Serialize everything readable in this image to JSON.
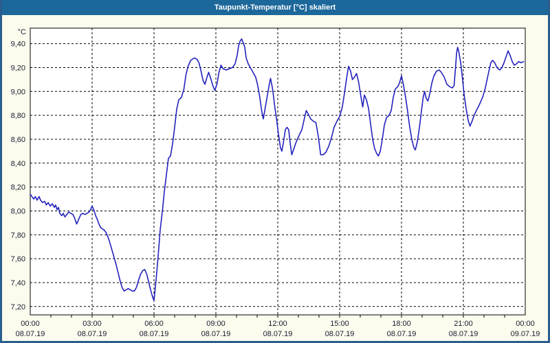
{
  "window": {
    "title": "Taupunkt-Temperatur [°C] skaliert"
  },
  "colors": {
    "titlebar_bg": "#1d689b",
    "titlebar_text": "#ffffff",
    "window_bg": "#fbfbee",
    "window_border": "#2a5d8c",
    "plot_bg": "#ffffff",
    "plot_border": "#000000",
    "grid": "#000000",
    "line": "#2222bd",
    "label_text": "#1b1b2f"
  },
  "chart_data": {
    "type": "line",
    "title": "Taupunkt-Temperatur [°C] skaliert",
    "ylabel": "°C",
    "unit_label": "°C",
    "grid": true,
    "legend": "none",
    "ylim": [
      7.13,
      9.53
    ],
    "xlim_hours": [
      0,
      24
    ],
    "y_ticks": [
      {
        "value": 9.4,
        "label": "9,40"
      },
      {
        "value": 9.2,
        "label": "9,20"
      },
      {
        "value": 9.0,
        "label": "9,00"
      },
      {
        "value": 8.8,
        "label": "8,80"
      },
      {
        "value": 8.6,
        "label": "8,60"
      },
      {
        "value": 8.4,
        "label": "8,40"
      },
      {
        "value": 8.2,
        "label": "8,20"
      },
      {
        "value": 8.0,
        "label": "8,00"
      },
      {
        "value": 7.8,
        "label": "7,80"
      },
      {
        "value": 7.6,
        "label": "7,60"
      },
      {
        "value": 7.4,
        "label": "7,40"
      },
      {
        "value": 7.2,
        "label": "7,20"
      }
    ],
    "x_ticks": [
      {
        "hour": 0,
        "time": "00:00",
        "date": "08.07.19"
      },
      {
        "hour": 3,
        "time": "03:00",
        "date": "08.07.19"
      },
      {
        "hour": 6,
        "time": "06:00",
        "date": "08.07.19"
      },
      {
        "hour": 9,
        "time": "09:00",
        "date": "08.07.19"
      },
      {
        "hour": 12,
        "time": "12:00",
        "date": "08.07.19"
      },
      {
        "hour": 15,
        "time": "15:00",
        "date": "08.07.19"
      },
      {
        "hour": 18,
        "time": "18:00",
        "date": "08.07.19"
      },
      {
        "hour": 21,
        "time": "21:00",
        "date": "08.07.19"
      },
      {
        "hour": 24,
        "time": "00:00",
        "date": "09.07.19"
      }
    ],
    "minor_x_tick_every_hours": 1,
    "series": [
      {
        "name": "Taupunkt-Temperatur",
        "points": [
          [
            0,
            8.14
          ],
          [
            0.08,
            8.12
          ],
          [
            0.17,
            8.1
          ],
          [
            0.25,
            8.12
          ],
          [
            0.33,
            8.09
          ],
          [
            0.43,
            8.12
          ],
          [
            0.5,
            8.09
          ],
          [
            0.6,
            8.07
          ],
          [
            0.7,
            8.08
          ],
          [
            0.78,
            8.05
          ],
          [
            0.87,
            8.07
          ],
          [
            0.97,
            8.04
          ],
          [
            1.07,
            8.06
          ],
          [
            1.17,
            8.03
          ],
          [
            1.23,
            8.05
          ],
          [
            1.3,
            8.01
          ],
          [
            1.37,
            8.03
          ],
          [
            1.43,
            7.98
          ],
          [
            1.53,
            7.96
          ],
          [
            1.6,
            7.98
          ],
          [
            1.68,
            7.95
          ],
          [
            1.77,
            7.97
          ],
          [
            1.87,
            7.99
          ],
          [
            1.97,
            7.98
          ],
          [
            2.07,
            7.97
          ],
          [
            2.15,
            7.94
          ],
          [
            2.25,
            7.89
          ],
          [
            2.35,
            7.93
          ],
          [
            2.45,
            7.97
          ],
          [
            2.55,
            7.98
          ],
          [
            2.65,
            7.97
          ],
          [
            2.75,
            7.98
          ],
          [
            2.85,
            7.99
          ],
          [
            2.92,
            8.01
          ],
          [
            3.0,
            8.04
          ],
          [
            3.08,
            8.01
          ],
          [
            3.17,
            7.96
          ],
          [
            3.25,
            7.93
          ],
          [
            3.33,
            7.89
          ],
          [
            3.42,
            7.86
          ],
          [
            3.5,
            7.85
          ],
          [
            3.58,
            7.84
          ],
          [
            3.67,
            7.82
          ],
          [
            3.75,
            7.79
          ],
          [
            3.85,
            7.74
          ],
          [
            3.95,
            7.68
          ],
          [
            4.05,
            7.62
          ],
          [
            4.15,
            7.56
          ],
          [
            4.25,
            7.49
          ],
          [
            4.35,
            7.42
          ],
          [
            4.45,
            7.36
          ],
          [
            4.55,
            7.33
          ],
          [
            4.65,
            7.34
          ],
          [
            4.75,
            7.35
          ],
          [
            4.85,
            7.34
          ],
          [
            4.95,
            7.33
          ],
          [
            5.05,
            7.33
          ],
          [
            5.15,
            7.36
          ],
          [
            5.25,
            7.42
          ],
          [
            5.35,
            7.47
          ],
          [
            5.45,
            7.5
          ],
          [
            5.55,
            7.51
          ],
          [
            5.65,
            7.47
          ],
          [
            5.75,
            7.4
          ],
          [
            5.85,
            7.33
          ],
          [
            5.95,
            7.27
          ],
          [
            6.0,
            7.25
          ],
          [
            6.1,
            7.42
          ],
          [
            6.2,
            7.62
          ],
          [
            6.3,
            7.84
          ],
          [
            6.42,
            8.02
          ],
          [
            6.5,
            8.16
          ],
          [
            6.6,
            8.3
          ],
          [
            6.7,
            8.44
          ],
          [
            6.8,
            8.46
          ],
          [
            6.9,
            8.56
          ],
          [
            7.0,
            8.7
          ],
          [
            7.1,
            8.85
          ],
          [
            7.2,
            8.93
          ],
          [
            7.33,
            8.95
          ],
          [
            7.45,
            9.02
          ],
          [
            7.55,
            9.14
          ],
          [
            7.65,
            9.21
          ],
          [
            7.78,
            9.26
          ],
          [
            7.95,
            9.28
          ],
          [
            8.08,
            9.27
          ],
          [
            8.18,
            9.24
          ],
          [
            8.28,
            9.17
          ],
          [
            8.38,
            9.09
          ],
          [
            8.47,
            9.06
          ],
          [
            8.57,
            9.12
          ],
          [
            8.65,
            9.16
          ],
          [
            8.75,
            9.11
          ],
          [
            8.85,
            9.05
          ],
          [
            8.95,
            9.01
          ],
          [
            9.05,
            9.06
          ],
          [
            9.15,
            9.16
          ],
          [
            9.25,
            9.22
          ],
          [
            9.35,
            9.19
          ],
          [
            9.5,
            9.18
          ],
          [
            9.65,
            9.19
          ],
          [
            9.8,
            9.2
          ],
          [
            9.93,
            9.23
          ],
          [
            10.03,
            9.3
          ],
          [
            10.1,
            9.38
          ],
          [
            10.17,
            9.42
          ],
          [
            10.25,
            9.44
          ],
          [
            10.32,
            9.41
          ],
          [
            10.4,
            9.37
          ],
          [
            10.47,
            9.28
          ],
          [
            10.57,
            9.23
          ],
          [
            10.67,
            9.2
          ],
          [
            10.8,
            9.16
          ],
          [
            10.93,
            9.12
          ],
          [
            11.03,
            9.05
          ],
          [
            11.13,
            8.95
          ],
          [
            11.22,
            8.84
          ],
          [
            11.3,
            8.77
          ],
          [
            11.4,
            8.87
          ],
          [
            11.5,
            8.97
          ],
          [
            11.58,
            9.05
          ],
          [
            11.65,
            9.11
          ],
          [
            11.75,
            9.02
          ],
          [
            11.85,
            8.88
          ],
          [
            11.95,
            8.76
          ],
          [
            12.03,
            8.65
          ],
          [
            12.13,
            8.53
          ],
          [
            12.2,
            8.5
          ],
          [
            12.28,
            8.58
          ],
          [
            12.37,
            8.68
          ],
          [
            12.45,
            8.7
          ],
          [
            12.53,
            8.68
          ],
          [
            12.6,
            8.57
          ],
          [
            12.68,
            8.47
          ],
          [
            12.78,
            8.52
          ],
          [
            12.9,
            8.58
          ],
          [
            13.03,
            8.63
          ],
          [
            13.17,
            8.68
          ],
          [
            13.3,
            8.78
          ],
          [
            13.38,
            8.84
          ],
          [
            13.48,
            8.81
          ],
          [
            13.6,
            8.77
          ],
          [
            13.73,
            8.75
          ],
          [
            13.85,
            8.74
          ],
          [
            13.97,
            8.62
          ],
          [
            14.08,
            8.47
          ],
          [
            14.2,
            8.47
          ],
          [
            14.33,
            8.49
          ],
          [
            14.47,
            8.54
          ],
          [
            14.6,
            8.61
          ],
          [
            14.73,
            8.7
          ],
          [
            14.87,
            8.75
          ],
          [
            15.0,
            8.79
          ],
          [
            15.13,
            8.87
          ],
          [
            15.23,
            8.98
          ],
          [
            15.33,
            9.1
          ],
          [
            15.43,
            9.21
          ],
          [
            15.53,
            9.17
          ],
          [
            15.62,
            9.1
          ],
          [
            15.72,
            9.12
          ],
          [
            15.82,
            9.15
          ],
          [
            15.92,
            9.08
          ],
          [
            16.02,
            8.97
          ],
          [
            16.12,
            8.87
          ],
          [
            16.2,
            8.97
          ],
          [
            16.3,
            8.93
          ],
          [
            16.4,
            8.86
          ],
          [
            16.5,
            8.73
          ],
          [
            16.6,
            8.6
          ],
          [
            16.7,
            8.52
          ],
          [
            16.8,
            8.48
          ],
          [
            16.88,
            8.46
          ],
          [
            16.97,
            8.5
          ],
          [
            17.07,
            8.6
          ],
          [
            17.17,
            8.72
          ],
          [
            17.27,
            8.78
          ],
          [
            17.4,
            8.8
          ],
          [
            17.5,
            8.84
          ],
          [
            17.6,
            8.95
          ],
          [
            17.7,
            9.02
          ],
          [
            17.82,
            9.04
          ],
          [
            17.9,
            9.07
          ],
          [
            18.0,
            9.13
          ],
          [
            18.1,
            9.05
          ],
          [
            18.2,
            8.95
          ],
          [
            18.3,
            8.83
          ],
          [
            18.4,
            8.7
          ],
          [
            18.5,
            8.6
          ],
          [
            18.6,
            8.53
          ],
          [
            18.67,
            8.51
          ],
          [
            18.77,
            8.58
          ],
          [
            18.87,
            8.7
          ],
          [
            18.97,
            8.84
          ],
          [
            19.05,
            8.95
          ],
          [
            19.12,
            9.0
          ],
          [
            19.2,
            8.94
          ],
          [
            19.28,
            8.92
          ],
          [
            19.37,
            8.98
          ],
          [
            19.47,
            9.07
          ],
          [
            19.57,
            9.13
          ],
          [
            19.7,
            9.17
          ],
          [
            19.83,
            9.18
          ],
          [
            19.93,
            9.16
          ],
          [
            20.07,
            9.12
          ],
          [
            20.2,
            9.06
          ],
          [
            20.33,
            9.04
          ],
          [
            20.47,
            9.03
          ],
          [
            20.55,
            9.05
          ],
          [
            20.62,
            9.2
          ],
          [
            20.67,
            9.32
          ],
          [
            20.72,
            9.37
          ],
          [
            20.78,
            9.33
          ],
          [
            20.87,
            9.24
          ],
          [
            20.95,
            9.12
          ],
          [
            21.03,
            8.98
          ],
          [
            21.13,
            8.86
          ],
          [
            21.23,
            8.76
          ],
          [
            21.32,
            8.71
          ],
          [
            21.42,
            8.75
          ],
          [
            21.5,
            8.79
          ],
          [
            21.6,
            8.83
          ],
          [
            21.72,
            8.87
          ],
          [
            21.83,
            8.91
          ],
          [
            21.95,
            8.96
          ],
          [
            22.05,
            9.02
          ],
          [
            22.15,
            9.1
          ],
          [
            22.25,
            9.18
          ],
          [
            22.33,
            9.24
          ],
          [
            22.42,
            9.26
          ],
          [
            22.52,
            9.24
          ],
          [
            22.6,
            9.21
          ],
          [
            22.68,
            9.19
          ],
          [
            22.77,
            9.18
          ],
          [
            22.87,
            9.2
          ],
          [
            22.97,
            9.24
          ],
          [
            23.07,
            9.29
          ],
          [
            23.17,
            9.34
          ],
          [
            23.27,
            9.3
          ],
          [
            23.37,
            9.25
          ],
          [
            23.47,
            9.22
          ],
          [
            23.57,
            9.23
          ],
          [
            23.68,
            9.25
          ],
          [
            23.8,
            9.24
          ],
          [
            23.92,
            9.25
          ]
        ]
      }
    ]
  }
}
